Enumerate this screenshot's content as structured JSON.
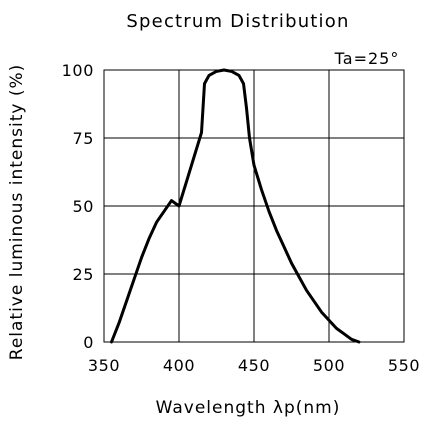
{
  "chart_data": {
    "type": "line",
    "title": "Spectrum Distribution",
    "annotation": "Ta=25°",
    "xlabel": "Wavelength λp(nm)",
    "ylabel": "Relative luminous intensity (%)",
    "xlim": [
      350,
      550
    ],
    "ylim": [
      0,
      100
    ],
    "x_ticks": [
      350,
      400,
      450,
      500,
      550
    ],
    "y_ticks": [
      0,
      25,
      50,
      75,
      100
    ],
    "grid": true,
    "series": [
      {
        "x": [
          355,
          360,
          365,
          370,
          375,
          380,
          385,
          390,
          395,
          400,
          405,
          410,
          415,
          417,
          420,
          425,
          430,
          435,
          440,
          443,
          445,
          447,
          450,
          455,
          460,
          465,
          470,
          475,
          480,
          485,
          490,
          495,
          500,
          505,
          510,
          515,
          520
        ],
        "y": [
          0,
          7,
          15,
          23,
          31,
          38,
          44,
          48,
          52,
          50,
          59,
          68,
          77,
          95,
          98,
          99.5,
          100,
          99.5,
          98,
          95,
          86,
          75,
          65,
          56,
          48,
          41,
          35,
          29,
          24,
          19,
          15,
          11,
          8,
          5,
          3,
          1,
          0
        ]
      }
    ]
  }
}
